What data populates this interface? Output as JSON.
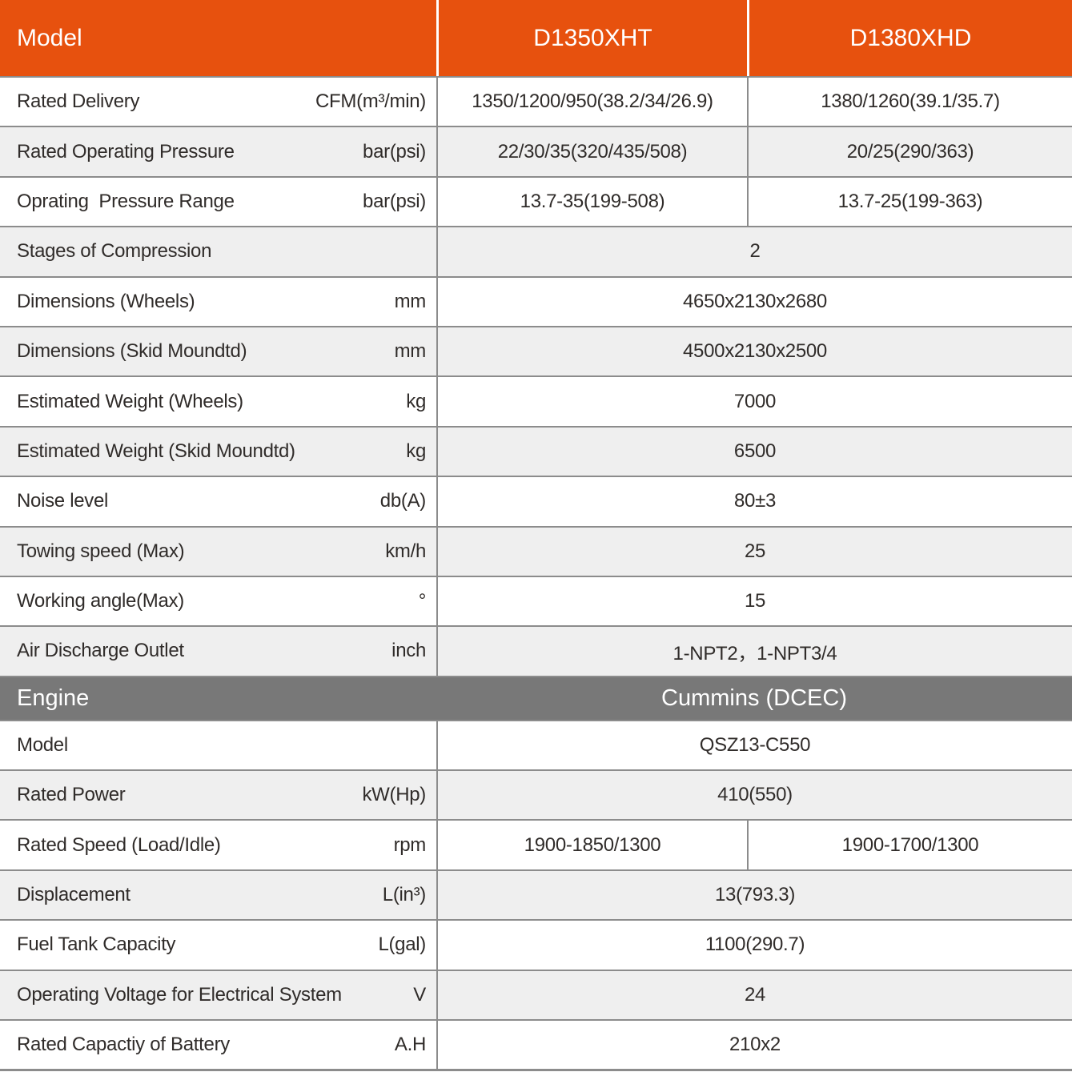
{
  "colors": {
    "header_bg": "#E7510E",
    "section_header_bg": "#787878",
    "alt_row_bg": "#EFEFEF",
    "border": "#8C8C8C",
    "text": "#302C2A",
    "header_text": "#FFFFFF"
  },
  "header": {
    "model": "Model",
    "col1": "D1350XHT",
    "col2": "D1380XHD"
  },
  "spec_rows": [
    {
      "label": "Rated Delivery",
      "unit": "CFM(m³/min)",
      "v1": "1350/1200/950(38.2/34/26.9)",
      "v2": "1380/1260(39.1/35.7)"
    },
    {
      "label": "Rated Operating Pressure",
      "unit": "bar(psi)",
      "v1": "22/30/35(320/435/508)",
      "v2": "20/25(290/363)"
    },
    {
      "label": "Oprating  Pressure Range",
      "unit": "bar(psi)",
      "v1": "13.7-35(199-508)",
      "v2": "13.7-25(199-363)"
    },
    {
      "label": "Stages of Compression",
      "unit": "",
      "merged": "2"
    },
    {
      "label": "Dimensions (Wheels)",
      "unit": "mm",
      "merged": "4650x2130x2680"
    },
    {
      "label": "Dimensions (Skid Moundtd)",
      "unit": "mm",
      "merged": "4500x2130x2500"
    },
    {
      "label": "Estimated Weight (Wheels)",
      "unit": "kg",
      "merged": "7000"
    },
    {
      "label": "Estimated Weight (Skid Moundtd)",
      "unit": "kg",
      "merged": "6500"
    },
    {
      "label": "Noise level",
      "unit": "db(A)",
      "merged": "80±3"
    },
    {
      "label": "Towing speed (Max)",
      "unit": "km/h",
      "merged": "25"
    },
    {
      "label": "Working angle(Max)",
      "unit": "°",
      "merged": "15"
    },
    {
      "label": "Air Discharge Outlet",
      "unit": "inch",
      "merged": "1-NPT2，1-NPT3/4"
    }
  ],
  "engine_header": {
    "label": "Engine",
    "value": "Cummins (DCEC)"
  },
  "engine_rows": [
    {
      "label": "Model",
      "unit": "",
      "merged": "QSZ13-C550"
    },
    {
      "label": "Rated Power",
      "unit": "kW(Hp)",
      "merged": "410(550)"
    },
    {
      "label": "Rated Speed (Load/Idle)",
      "unit": "rpm",
      "v1": "1900-1850/1300",
      "v2": "1900-1700/1300"
    },
    {
      "label": "Displacement",
      "unit": "L(in³)",
      "merged": "13(793.3)"
    },
    {
      "label": "Fuel Tank Capacity",
      "unit": "L(gal)",
      "merged": "1100(290.7)"
    },
    {
      "label": "Operating Voltage for Electrical System",
      "unit": "V",
      "merged": "24"
    },
    {
      "label": "Rated Capactiy of Battery",
      "unit": "A.H",
      "merged": "210x2"
    }
  ]
}
